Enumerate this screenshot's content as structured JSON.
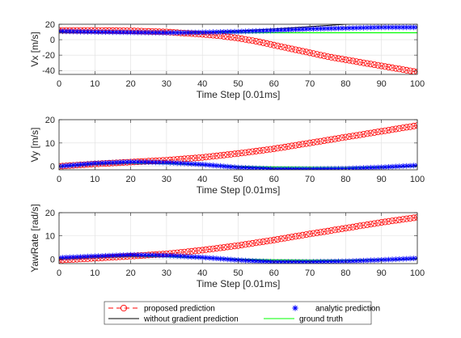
{
  "figure": {
    "legend": {
      "entries": [
        {
          "label": "proposed prediction",
          "color": "#ff0000",
          "style": "dash-circle"
        },
        {
          "label": "analytic prediction",
          "color": "#0000ff",
          "style": "star"
        },
        {
          "label": "without gradient prediction",
          "color": "#000000",
          "style": "line"
        },
        {
          "label": "ground truth",
          "color": "#00ff00",
          "style": "line"
        }
      ]
    }
  },
  "chart_data": [
    {
      "type": "line",
      "xlabel": "Time Step [0.01ms]",
      "ylabel": "Vx [m/s]",
      "xlim": [
        0,
        100
      ],
      "ylim": [
        -45,
        20
      ],
      "xticks": [
        0,
        10,
        20,
        30,
        40,
        50,
        60,
        70,
        80,
        90,
        100
      ],
      "yticks": [
        -40,
        -20,
        0,
        20
      ],
      "grid": true,
      "series": [
        {
          "name": "proposed prediction",
          "color": "#ff0000",
          "x": [
            0,
            10,
            20,
            30,
            40,
            45,
            50,
            55,
            60,
            65,
            70,
            75,
            80,
            85,
            90,
            95,
            100
          ],
          "y": [
            12,
            12,
            11.5,
            10,
            7,
            5,
            2,
            -2,
            -7,
            -12,
            -17,
            -22,
            -26,
            -30,
            -34,
            -38,
            -42
          ]
        },
        {
          "name": "analytic prediction",
          "color": "#0000ff",
          "x": [
            0,
            10,
            20,
            30,
            40,
            50,
            60,
            70,
            80,
            90,
            100
          ],
          "y": [
            11,
            10,
            9.5,
            9,
            9.5,
            10.5,
            12,
            14,
            15,
            16,
            16
          ]
        },
        {
          "name": "without gradient prediction",
          "color": "#000000",
          "x": [
            0,
            10,
            20,
            30,
            40,
            50,
            60,
            70,
            80,
            90,
            100
          ],
          "y": [
            10,
            9.5,
            9,
            8.8,
            9.5,
            11.5,
            14,
            17,
            20,
            22,
            24
          ]
        },
        {
          "name": "ground truth",
          "color": "#00ff00",
          "x": [
            0,
            10,
            20,
            30,
            40,
            50,
            60,
            70,
            80,
            90,
            100
          ],
          "y": [
            9,
            9,
            9,
            9,
            9,
            9,
            9,
            9,
            9,
            9,
            9
          ]
        }
      ]
    },
    {
      "type": "line",
      "xlabel": "Time Step [0.01ms]",
      "ylabel": "Vy [m/s]",
      "xlim": [
        0,
        100
      ],
      "ylim": [
        -1.5,
        20
      ],
      "xticks": [
        0,
        10,
        20,
        30,
        40,
        50,
        60,
        70,
        80,
        90,
        100
      ],
      "yticks": [
        0,
        10,
        20
      ],
      "grid": true,
      "series": [
        {
          "name": "proposed prediction",
          "color": "#ff0000",
          "x": [
            0,
            10,
            20,
            30,
            40,
            50,
            60,
            70,
            80,
            90,
            100
          ],
          "y": [
            0,
            1,
            1.8,
            2.6,
            3.8,
            5.5,
            7.5,
            10,
            12.5,
            15,
            17.5
          ]
        },
        {
          "name": "analytic prediction",
          "color": "#0000ff",
          "x": [
            0,
            10,
            20,
            30,
            40,
            50,
            60,
            70,
            80,
            90,
            100
          ],
          "y": [
            0,
            1.3,
            1.9,
            1.6,
            0.8,
            -0.5,
            -1.2,
            -1.2,
            -1,
            -0.4,
            0.4
          ]
        },
        {
          "name": "without gradient prediction",
          "color": "#000000",
          "x": [
            0,
            10,
            20,
            30,
            40,
            50,
            60,
            70,
            80,
            90,
            100
          ],
          "y": [
            0,
            1.2,
            1.8,
            1.5,
            0.7,
            -0.3,
            -0.9,
            -1,
            -1,
            -0.5,
            0.2
          ]
        },
        {
          "name": "ground truth",
          "color": "#00ff00",
          "x": [
            0,
            10,
            20,
            30,
            40,
            50,
            60,
            70,
            80,
            90,
            100
          ],
          "y": [
            0,
            0.8,
            1.2,
            1.1,
            0.6,
            0,
            -0.3,
            -0.4,
            -0.5,
            -0.3,
            0
          ]
        }
      ]
    },
    {
      "type": "line",
      "xlabel": "Time Step [0.01ms]",
      "ylabel": "YawRate [rad/s]",
      "xlim": [
        0,
        100
      ],
      "ylim": [
        -2,
        20
      ],
      "xticks": [
        0,
        10,
        20,
        30,
        40,
        50,
        60,
        70,
        80,
        90,
        100
      ],
      "yticks": [
        0,
        10,
        20
      ],
      "grid": true,
      "series": [
        {
          "name": "proposed prediction",
          "color": "#ff0000",
          "x": [
            0,
            10,
            20,
            30,
            40,
            50,
            60,
            70,
            80,
            90,
            100
          ],
          "y": [
            -0.5,
            0.3,
            1.2,
            2.2,
            3.8,
            5.8,
            8.2,
            10.8,
            13.3,
            15.8,
            18
          ]
        },
        {
          "name": "analytic prediction",
          "color": "#0000ff",
          "x": [
            0,
            10,
            20,
            30,
            40,
            50,
            60,
            70,
            80,
            90,
            100
          ],
          "y": [
            0.5,
            1.2,
            1.8,
            1.5,
            0.7,
            -0.5,
            -1.3,
            -1.3,
            -1,
            -0.4,
            0.3
          ]
        },
        {
          "name": "without gradient prediction",
          "color": "#000000",
          "x": [
            0,
            10,
            20,
            30,
            40,
            50,
            60,
            70,
            80,
            90,
            100
          ],
          "y": [
            0.3,
            1,
            1.6,
            1.4,
            0.6,
            -0.3,
            -0.9,
            -1,
            -0.9,
            -0.4,
            0.1
          ]
        },
        {
          "name": "ground truth",
          "color": "#00ff00",
          "x": [
            0,
            10,
            20,
            30,
            40,
            50,
            60,
            70,
            80,
            90,
            100
          ],
          "y": [
            0,
            0.5,
            1,
            0.9,
            0.5,
            0,
            -0.4,
            -0.5,
            -0.5,
            -0.3,
            0
          ]
        }
      ]
    }
  ]
}
